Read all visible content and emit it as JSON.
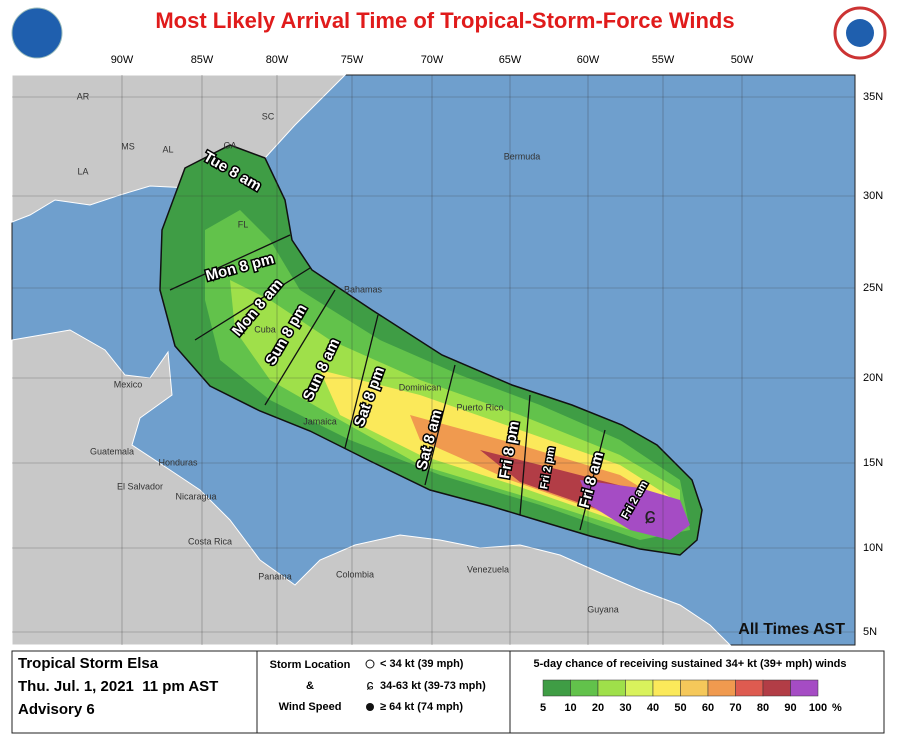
{
  "header": {
    "title": "Most Likely Arrival Time of Tropical-Storm-Force Winds"
  },
  "map": {
    "longitudes": [
      "90W",
      "85W",
      "80W",
      "75W",
      "70W",
      "65W",
      "60W",
      "55W",
      "50W"
    ],
    "latitudes": [
      "35N",
      "30N",
      "25N",
      "20N",
      "15N",
      "10N",
      "5N"
    ],
    "places": [
      "AR",
      "MS",
      "AL",
      "GA",
      "SC",
      "LA",
      "FL",
      "Bermuda",
      "Bahamas",
      "Cuba",
      "Mexico",
      "Jamaica",
      "Dominican",
      "Puerto Rico",
      "Guatemala",
      "Honduras",
      "El Salvador",
      "Nicaragua",
      "Costa Rica",
      "Panama",
      "Colombia",
      "Venezuela",
      "Guyana"
    ],
    "arrival_times": [
      "Tue 8 am",
      "Mon 8 pm",
      "Mon 8 am",
      "Sun 8 pm",
      "Sun 8 am",
      "Sat 8 pm",
      "Sat 8 am",
      "Fri 8 pm",
      "Fri 2 pm",
      "Fri 8 am",
      "Fri 2 am"
    ],
    "note": "All Times AST"
  },
  "footer": {
    "storm": "Tropical Storm Elsa",
    "date": "Thu. Jul. 1, 2021  11 pm AST",
    "advisory": "Advisory 6",
    "storm_location_label": "Storm Location",
    "ampersand": "&",
    "wind_speed_label": "Wind Speed",
    "symbols": [
      "< 34 kt (39 mph)",
      "34-63 kt (39-73 mph)",
      "≥ 64 kt (74 mph)"
    ],
    "legend_title": "5-day chance of receiving sustained 34+ kt (39+ mph) winds",
    "legend_values": [
      5,
      10,
      20,
      30,
      40,
      50,
      60,
      70,
      80,
      90,
      100
    ],
    "legend_unit": "%",
    "legend_colors": [
      "#3f9d45",
      "#62c24b",
      "#9fe04a",
      "#d9f25c",
      "#fbe95a",
      "#f5c85a",
      "#f09a4f",
      "#de5b50",
      "#b23d46",
      "#a54cc4"
    ]
  }
}
